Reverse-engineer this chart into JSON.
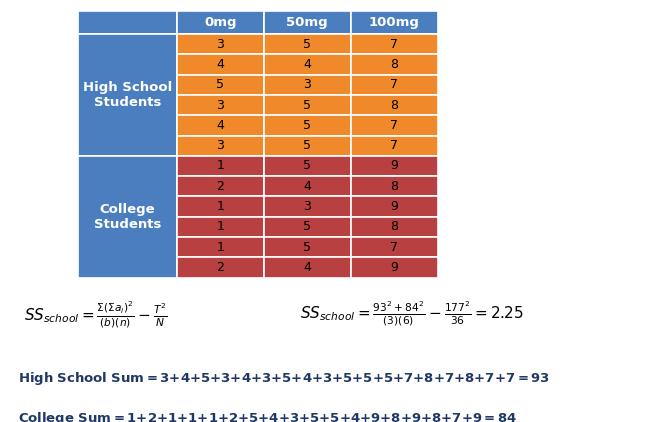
{
  "header_labels": [
    "0mg",
    "50mg",
    "100mg"
  ],
  "row_label_hs": "High School\nStudents",
  "row_label_col": "College\nStudents",
  "hs_data": [
    [
      3,
      5,
      7
    ],
    [
      4,
      4,
      8
    ],
    [
      5,
      3,
      7
    ],
    [
      3,
      5,
      8
    ],
    [
      4,
      5,
      7
    ],
    [
      3,
      5,
      7
    ]
  ],
  "col_data": [
    [
      1,
      5,
      9
    ],
    [
      2,
      4,
      8
    ],
    [
      1,
      3,
      9
    ],
    [
      1,
      5,
      8
    ],
    [
      1,
      5,
      7
    ],
    [
      2,
      4,
      9
    ]
  ],
  "header_bg": "#4a7ebf",
  "row_label_bg": "#4a7ebf",
  "hs_row_bg": "#f0892a",
  "col_row_bg": "#b94040",
  "header_text_color": "#ffffff",
  "row_label_text_color": "#ffffff",
  "data_text_color": "#000000",
  "dark_blue": "#1f3864",
  "bg_color": "#ffffff",
  "line1": "High School Sum = 3+4+5+3+4+3+5+4+3+5+5+5+7+8+7+8+7+7 = 93",
  "line2": "College Sum = 1+2+1+1+1+2+5+4+3+5+5+4+9+8+9+8+7+9 = 84"
}
